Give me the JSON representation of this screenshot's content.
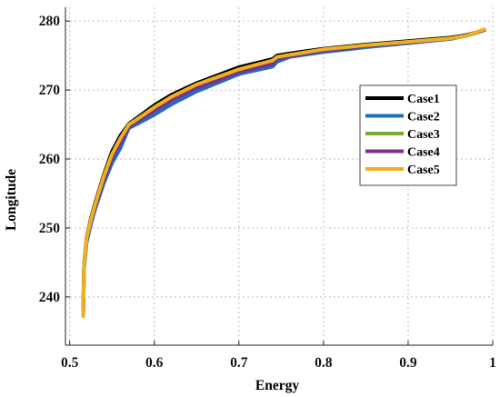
{
  "chart_data": {
    "type": "line",
    "title": "",
    "xlabel": "Energy",
    "ylabel": "Longitude",
    "xlim": [
      0.495,
      1.0
    ],
    "ylim": [
      233,
      282
    ],
    "xticks": [
      0.5,
      0.6,
      0.7,
      0.8,
      0.9,
      1.0
    ],
    "xtick_labels": [
      "0.5",
      "0.6",
      "0.7",
      "0.8",
      "0.9",
      "1"
    ],
    "yticks": [
      240,
      250,
      260,
      270,
      280
    ],
    "ytick_labels": [
      "240",
      "250",
      "260",
      "270",
      "280"
    ],
    "grid": true,
    "legend_position": "right",
    "series": [
      {
        "name": "Case1",
        "color": "#000000",
        "x": [
          0.516,
          0.517,
          0.52,
          0.525,
          0.53,
          0.54,
          0.55,
          0.56,
          0.57,
          0.58,
          0.6,
          0.62,
          0.65,
          0.7,
          0.74,
          0.745,
          0.76,
          0.8,
          0.85,
          0.9,
          0.95,
          0.97,
          0.99
        ],
        "values": [
          237.5,
          244.8,
          248.6,
          251.3,
          253.6,
          257.6,
          261.1,
          263.4,
          265.1,
          266.0,
          267.8,
          269.3,
          271.0,
          273.3,
          274.5,
          275.0,
          275.3,
          276.0,
          276.6,
          277.1,
          277.6,
          278.0,
          278.7
        ]
      },
      {
        "name": "Case2",
        "color": "#1f6ebf",
        "x": [
          0.516,
          0.517,
          0.52,
          0.525,
          0.53,
          0.54,
          0.55,
          0.56,
          0.57,
          0.58,
          0.6,
          0.62,
          0.65,
          0.7,
          0.74,
          0.745,
          0.76,
          0.8,
          0.85,
          0.9,
          0.95,
          0.97,
          0.99
        ],
        "values": [
          237.5,
          244.2,
          247.9,
          250.5,
          252.7,
          256.4,
          259.4,
          261.6,
          264.5,
          265.1,
          266.4,
          267.9,
          269.8,
          272.3,
          273.4,
          274.1,
          274.8,
          275.5,
          276.2,
          276.8,
          277.4,
          277.9,
          278.7
        ]
      },
      {
        "name": "Case3",
        "color": "#77ac30",
        "x": [
          0.516,
          0.517,
          0.52,
          0.525,
          0.53,
          0.54,
          0.55,
          0.56,
          0.57,
          0.58,
          0.6,
          0.62,
          0.65,
          0.7,
          0.74,
          0.745,
          0.76,
          0.8,
          0.85,
          0.9,
          0.95,
          0.97,
          0.99
        ],
        "values": [
          237.5,
          244.6,
          248.4,
          251.0,
          253.2,
          257.1,
          260.3,
          262.6,
          264.8,
          265.6,
          267.2,
          268.7,
          270.5,
          272.8,
          274.0,
          274.6,
          275.0,
          275.8,
          276.4,
          276.9,
          277.5,
          277.9,
          278.7
        ]
      },
      {
        "name": "Case4",
        "color": "#7e2f8e",
        "x": [
          0.516,
          0.517,
          0.52,
          0.525,
          0.53,
          0.54,
          0.55,
          0.56,
          0.57,
          0.58,
          0.6,
          0.62,
          0.65,
          0.7,
          0.74,
          0.745,
          0.76,
          0.8,
          0.85,
          0.9,
          0.95,
          0.97,
          0.99
        ],
        "values": [
          237.5,
          244.5,
          248.3,
          250.9,
          253.1,
          256.9,
          260.1,
          262.4,
          264.7,
          265.5,
          267.0,
          268.5,
          270.3,
          272.6,
          273.8,
          274.5,
          274.9,
          275.7,
          276.4,
          276.9,
          277.5,
          277.9,
          278.7
        ]
      },
      {
        "name": "Case5",
        "color": "#edb120",
        "x": [
          0.516,
          0.517,
          0.52,
          0.525,
          0.53,
          0.54,
          0.55,
          0.56,
          0.57,
          0.58,
          0.6,
          0.62,
          0.65,
          0.7,
          0.74,
          0.745,
          0.76,
          0.8,
          0.85,
          0.9,
          0.95,
          0.97,
          0.99
        ],
        "values": [
          237.2,
          244.6,
          248.5,
          251.1,
          253.4,
          257.4,
          260.7,
          263.0,
          265.0,
          265.8,
          267.5,
          269.0,
          270.8,
          273.0,
          274.3,
          274.8,
          275.1,
          275.9,
          276.5,
          277.0,
          277.5,
          277.9,
          278.8
        ]
      }
    ]
  }
}
